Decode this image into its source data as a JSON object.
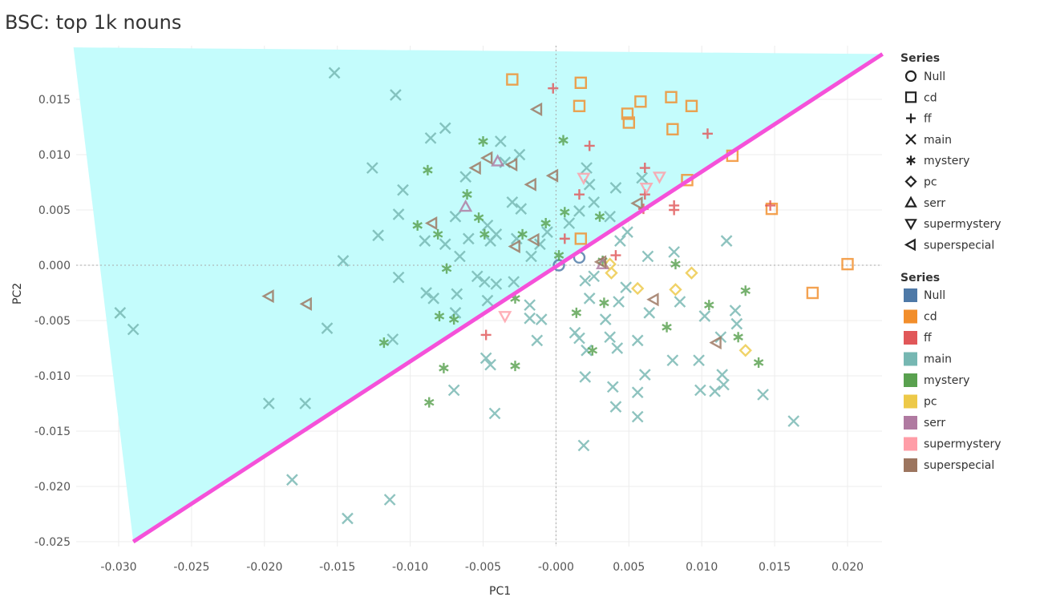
{
  "chart_data": {
    "type": "scatter",
    "title": "BSC: top 1k nouns",
    "xlabel": "PC1",
    "ylabel": "PC2",
    "xlim": [
      -0.033,
      0.0223
    ],
    "ylim": [
      -0.0265,
      0.0198
    ],
    "x_ticks": [
      "-0.030",
      "-0.025",
      "-0.020",
      "-0.015",
      "-0.010",
      "-0.005",
      "-0.000",
      "0.005",
      "0.010",
      "0.015",
      "0.020"
    ],
    "x_tick_values": [
      -0.03,
      -0.025,
      -0.02,
      -0.015,
      -0.01,
      -0.005,
      0,
      0.005,
      0.01,
      0.015,
      0.02
    ],
    "y_ticks": [
      "0.015",
      "0.010",
      "0.005",
      "0.000",
      "-0.005",
      "-0.010",
      "-0.015",
      "-0.020",
      "-0.025"
    ],
    "y_tick_values": [
      0.015,
      0.01,
      0.005,
      0,
      -0.005,
      -0.01,
      -0.015,
      -0.02,
      -0.025
    ],
    "grid": true,
    "legend_placement": "right",
    "shape_legend_title": "Series",
    "color_legend_title": "Series",
    "shaded_region": {
      "color": "#c4fcfc",
      "vertices": [
        [
          -0.0331,
          0.0197
        ],
        [
          0.0224,
          0.0191
        ],
        [
          -0.029,
          -0.025
        ]
      ]
    },
    "divider_line": {
      "color": "#f551d9",
      "from": [
        -0.029,
        -0.025
      ],
      "to": [
        0.0224,
        0.0191
      ]
    },
    "series": [
      {
        "name": "Null",
        "shape": "circle",
        "color": "#4e79a7",
        "points": [
          [
            0.0002,
            0.0
          ],
          [
            0.0016,
            0.0007
          ]
        ]
      },
      {
        "name": "cd",
        "shape": "square",
        "color": "#f28e2b",
        "points": [
          [
            -0.003,
            0.0168
          ],
          [
            0.0017,
            0.0165
          ],
          [
            0.0016,
            0.0144
          ],
          [
            0.0049,
            0.0137
          ],
          [
            0.0058,
            0.0148
          ],
          [
            0.005,
            0.0129
          ],
          [
            0.0079,
            0.0152
          ],
          [
            0.0093,
            0.0144
          ],
          [
            0.008,
            0.0123
          ],
          [
            0.009,
            0.0077
          ],
          [
            0.0121,
            0.0099
          ],
          [
            0.0148,
            0.0051
          ],
          [
            0.02,
            0.0001
          ],
          [
            0.0176,
            -0.0025
          ],
          [
            0.0017,
            0.0024
          ]
        ]
      },
      {
        "name": "ff",
        "shape": "plus",
        "color": "#e15759",
        "points": [
          [
            -0.0002,
            0.016
          ],
          [
            0.0023,
            0.0108
          ],
          [
            0.0104,
            0.0119
          ],
          [
            0.0016,
            0.0064
          ],
          [
            0.0061,
            0.0064
          ],
          [
            0.0061,
            0.0088
          ],
          [
            0.006,
            0.0051
          ],
          [
            0.0081,
            0.0054
          ],
          [
            0.0081,
            0.005
          ],
          [
            0.0147,
            0.0054
          ],
          [
            0.0006,
            0.0024
          ],
          [
            0.0041,
            0.0009
          ],
          [
            -0.0048,
            -0.0063
          ]
        ]
      },
      {
        "name": "main",
        "shape": "x",
        "color": "#76b7b2",
        "points": [
          [
            -0.0152,
            0.0174
          ],
          [
            -0.011,
            0.0154
          ],
          [
            -0.0076,
            0.0124
          ],
          [
            -0.0086,
            0.0115
          ],
          [
            -0.0126,
            0.0088
          ],
          [
            -0.0038,
            0.0112
          ],
          [
            -0.0025,
            0.01
          ],
          [
            -0.0035,
            0.0093
          ],
          [
            -0.0062,
            0.008
          ],
          [
            -0.0105,
            0.0068
          ],
          [
            -0.0108,
            0.0046
          ],
          [
            -0.0122,
            0.0027
          ],
          [
            -0.0146,
            0.0004
          ],
          [
            -0.0108,
            -0.0011
          ],
          [
            -0.0069,
            0.0044
          ],
          [
            -0.003,
            0.0057
          ],
          [
            -0.0024,
            0.0051
          ],
          [
            -0.009,
            0.0022
          ],
          [
            -0.0076,
            0.0019
          ],
          [
            -0.006,
            0.0024
          ],
          [
            -0.0047,
            0.0036
          ],
          [
            -0.0041,
            0.0028
          ],
          [
            -0.0066,
            0.0008
          ],
          [
            -0.0045,
            0.0022
          ],
          [
            -0.0027,
            0.0024
          ],
          [
            -0.0017,
            0.0008
          ],
          [
            -0.0011,
            0.0019
          ],
          [
            -0.0006,
            0.003
          ],
          [
            0.0009,
            0.0038
          ],
          [
            0.0016,
            0.0049
          ],
          [
            0.0023,
            0.0073
          ],
          [
            0.0021,
            0.0088
          ],
          [
            0.0026,
            0.0057
          ],
          [
            0.0041,
            0.007
          ],
          [
            0.0059,
            0.0079
          ],
          [
            0.0037,
            0.0044
          ],
          [
            0.0044,
            0.0022
          ],
          [
            0.0049,
            0.003
          ],
          [
            0.0063,
            0.0008
          ],
          [
            0.0081,
            0.0012
          ],
          [
            0.0117,
            0.0022
          ],
          [
            -0.0089,
            -0.0025
          ],
          [
            -0.0084,
            -0.003
          ],
          [
            -0.0068,
            -0.0026
          ],
          [
            -0.0069,
            -0.0043
          ],
          [
            -0.0054,
            -0.001
          ],
          [
            -0.0049,
            -0.0015
          ],
          [
            -0.0047,
            -0.0032
          ],
          [
            -0.0041,
            -0.0017
          ],
          [
            -0.0029,
            -0.0015
          ],
          [
            -0.0018,
            -0.0036
          ],
          [
            -0.001,
            -0.0049
          ],
          [
            -0.0018,
            -0.0048
          ],
          [
            -0.0013,
            -0.0068
          ],
          [
            -0.0048,
            -0.0084
          ],
          [
            -0.0045,
            -0.009
          ],
          [
            -0.007,
            -0.0113
          ],
          [
            -0.0042,
            -0.0134
          ],
          [
            -0.0112,
            -0.0067
          ],
          [
            -0.0157,
            -0.0057
          ],
          [
            -0.0197,
            -0.0125
          ],
          [
            -0.0172,
            -0.0125
          ],
          [
            -0.0181,
            -0.0194
          ],
          [
            -0.0114,
            -0.0212
          ],
          [
            -0.0143,
            -0.0229
          ],
          [
            -0.0299,
            -0.0043
          ],
          [
            -0.029,
            -0.0058
          ],
          [
            0.002,
            -0.0014
          ],
          [
            0.0026,
            -0.001
          ],
          [
            0.0023,
            -0.003
          ],
          [
            0.0034,
            -0.0049
          ],
          [
            0.0043,
            -0.0033
          ],
          [
            0.0013,
            -0.0061
          ],
          [
            0.0016,
            -0.0066
          ],
          [
            0.0021,
            -0.0077
          ],
          [
            0.0037,
            -0.0065
          ],
          [
            0.0042,
            -0.0075
          ],
          [
            0.0039,
            -0.011
          ],
          [
            0.0041,
            -0.0128
          ],
          [
            0.0056,
            -0.0115
          ],
          [
            0.002,
            -0.0101
          ],
          [
            0.0019,
            -0.0163
          ],
          [
            0.0056,
            -0.0068
          ],
          [
            0.0061,
            -0.0099
          ],
          [
            0.0056,
            -0.0137
          ],
          [
            0.008,
            -0.0086
          ],
          [
            0.0085,
            -0.0033
          ],
          [
            0.0102,
            -0.0046
          ],
          [
            0.0113,
            -0.0065
          ],
          [
            0.0123,
            -0.0041
          ],
          [
            0.0124,
            -0.0053
          ],
          [
            0.0114,
            -0.0099
          ],
          [
            0.0115,
            -0.0108
          ],
          [
            0.0109,
            -0.0114
          ],
          [
            0.0099,
            -0.0113
          ],
          [
            0.0098,
            -0.0086
          ],
          [
            0.0142,
            -0.0117
          ],
          [
            0.0163,
            -0.0141
          ],
          [
            0.0064,
            -0.0043
          ],
          [
            0.0048,
            -0.002
          ]
        ]
      },
      {
        "name": "mystery",
        "shape": "asterisk",
        "color": "#59a14f",
        "points": [
          [
            -0.005,
            0.0112
          ],
          [
            0.0005,
            0.0113
          ],
          [
            -0.0088,
            0.0086
          ],
          [
            -0.0061,
            0.0064
          ],
          [
            -0.0095,
            0.0036
          ],
          [
            -0.0081,
            0.0028
          ],
          [
            -0.0053,
            0.0043
          ],
          [
            -0.0075,
            -0.0003
          ],
          [
            -0.0049,
            0.0028
          ],
          [
            0.0006,
            0.0048
          ],
          [
            -0.0007,
            0.0038
          ],
          [
            -0.0023,
            0.0028
          ],
          [
            0.003,
            0.0044
          ],
          [
            -0.008,
            -0.0046
          ],
          [
            -0.007,
            -0.0049
          ],
          [
            -0.0028,
            -0.003
          ],
          [
            -0.0118,
            -0.007
          ],
          [
            -0.0077,
            -0.0093
          ],
          [
            -0.0028,
            -0.0091
          ],
          [
            -0.0087,
            -0.0124
          ],
          [
            0.0014,
            -0.0043
          ],
          [
            0.0032,
            0.0004
          ],
          [
            0.0033,
            -0.0034
          ],
          [
            0.0025,
            -0.0077
          ],
          [
            0.0082,
            0.0001
          ],
          [
            0.0076,
            -0.0056
          ],
          [
            0.0105,
            -0.0036
          ],
          [
            0.013,
            -0.0023
          ],
          [
            0.0125,
            -0.0065
          ],
          [
            0.0139,
            -0.0088
          ],
          [
            0.0002,
            0.0009
          ]
        ]
      },
      {
        "name": "pc",
        "shape": "diamond",
        "color": "#edc948",
        "points": [
          [
            0.0038,
            -0.0007
          ],
          [
            0.0056,
            -0.0021
          ],
          [
            0.0082,
            -0.0022
          ],
          [
            0.0093,
            -0.0007
          ],
          [
            0.013,
            -0.0077
          ],
          [
            0.0037,
            0.0001
          ]
        ]
      },
      {
        "name": "serr",
        "shape": "triangle-up",
        "color": "#b07aa1",
        "points": [
          [
            -0.0062,
            0.0053
          ],
          [
            -0.004,
            0.0094
          ],
          [
            0.0032,
            0.0001
          ]
        ]
      },
      {
        "name": "supermystery",
        "shape": "triangle-down",
        "color": "#ff9da7",
        "points": [
          [
            0.0019,
            0.0079
          ],
          [
            0.0071,
            0.008
          ],
          [
            0.0062,
            0.007
          ],
          [
            -0.0035,
            -0.0046
          ]
        ]
      },
      {
        "name": "superspecial",
        "shape": "triangle-left",
        "color": "#9c755f",
        "points": [
          [
            -0.0013,
            0.0141
          ],
          [
            -0.0055,
            0.0088
          ],
          [
            -0.0047,
            0.0097
          ],
          [
            -0.003,
            0.0091
          ],
          [
            -0.0017,
            0.0073
          ],
          [
            -0.0002,
            0.0081
          ],
          [
            -0.0085,
            0.0038
          ],
          [
            -0.0028,
            0.0017
          ],
          [
            -0.0015,
            0.0023
          ],
          [
            -0.0197,
            -0.0028
          ],
          [
            -0.0171,
            -0.0035
          ],
          [
            0.0056,
            0.0056
          ],
          [
            0.0067,
            -0.0031
          ],
          [
            0.011,
            -0.007
          ],
          [
            0.0031,
            0.0003
          ]
        ]
      }
    ]
  }
}
